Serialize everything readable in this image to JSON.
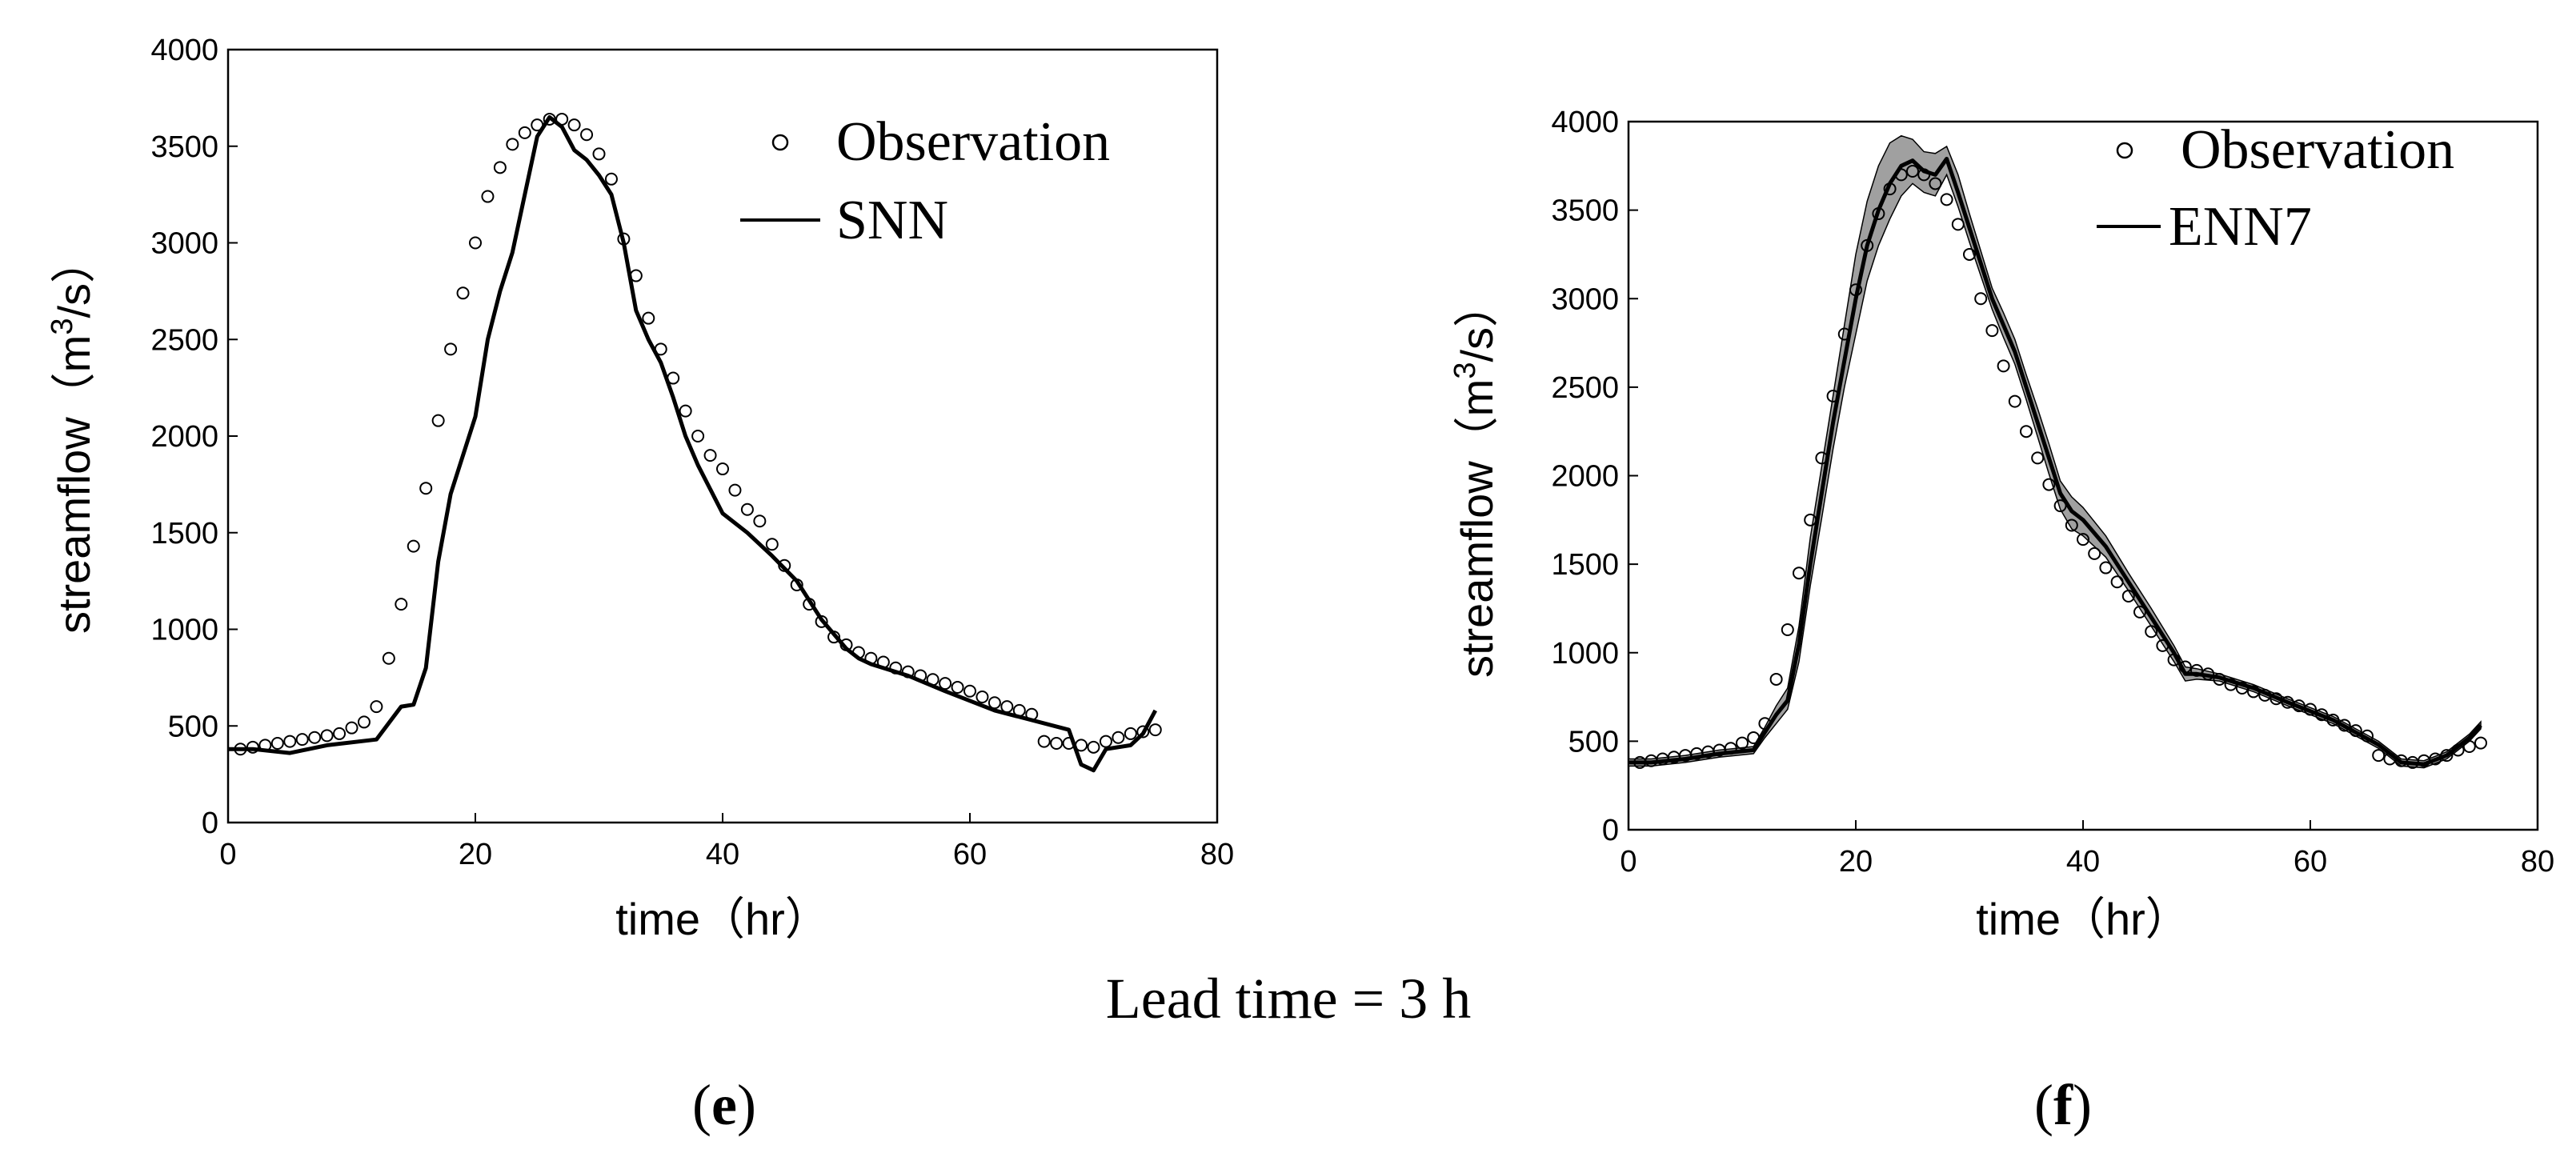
{
  "caption": "Lead time = 3 h",
  "panels": [
    {
      "paren_open": "(",
      "letter": "e",
      "paren_close": ")"
    },
    {
      "paren_open": "(",
      "letter": "f",
      "paren_close": ")"
    }
  ],
  "chart_data": [
    {
      "type": "line",
      "title": "",
      "xlabel": "time（hr）",
      "ylabel_main": "streamflow（m",
      "ylabel_sup": "3",
      "ylabel_end": "/s）",
      "xlim": [
        0,
        80
      ],
      "ylim": [
        0,
        4000
      ],
      "xticks": [
        0,
        20,
        40,
        60,
        80
      ],
      "yticks": [
        0,
        500,
        1000,
        1500,
        2000,
        2500,
        3000,
        3500,
        4000
      ],
      "legend_position": "top-right",
      "series": [
        {
          "name": "Observation",
          "style": "markers",
          "x": [
            1,
            2,
            3,
            4,
            5,
            6,
            7,
            8,
            9,
            10,
            11,
            12,
            13,
            14,
            15,
            16,
            17,
            18,
            19,
            20,
            21,
            22,
            23,
            24,
            25,
            26,
            27,
            28,
            29,
            30,
            31,
            32,
            33,
            34,
            35,
            36,
            37,
            38,
            39,
            40,
            41,
            42,
            43,
            44,
            45,
            46,
            47,
            48,
            49,
            50,
            51,
            52,
            53,
            54,
            55,
            56,
            57,
            58,
            59,
            60,
            61,
            62,
            63,
            64,
            65,
            66,
            67,
            68,
            69,
            70,
            71,
            72,
            73,
            74,
            75
          ],
          "y": [
            380,
            390,
            400,
            410,
            420,
            430,
            440,
            450,
            460,
            490,
            520,
            600,
            850,
            1130,
            1430,
            1730,
            2080,
            2450,
            2740,
            3000,
            3240,
            3390,
            3510,
            3570,
            3610,
            3640,
            3640,
            3610,
            3560,
            3460,
            3330,
            3020,
            2830,
            2610,
            2450,
            2300,
            2130,
            2000,
            1900,
            1830,
            1720,
            1620,
            1560,
            1440,
            1330,
            1230,
            1130,
            1040,
            960,
            920,
            880,
            850,
            830,
            800,
            780,
            760,
            740,
            720,
            700,
            680,
            650,
            620,
            600,
            580,
            560,
            420,
            410,
            410,
            400,
            390,
            420,
            440,
            460,
            470,
            480
          ],
          "color": "#000000"
        },
        {
          "name": "SNN",
          "style": "line",
          "x": [
            0,
            2,
            5,
            8,
            12,
            14,
            15,
            16,
            17,
            18,
            19,
            20,
            21,
            22,
            23,
            24,
            25,
            26,
            27,
            28,
            29,
            30,
            31,
            32,
            33,
            34,
            35,
            36,
            37,
            38,
            40,
            42,
            44,
            46,
            48,
            50,
            51,
            52,
            55,
            58,
            62,
            68,
            69,
            70,
            71,
            73,
            74,
            75
          ],
          "y": [
            380,
            380,
            360,
            400,
            430,
            600,
            610,
            800,
            1350,
            1700,
            1900,
            2100,
            2500,
            2750,
            2950,
            3250,
            3550,
            3650,
            3600,
            3480,
            3430,
            3350,
            3250,
            3000,
            2650,
            2500,
            2380,
            2200,
            2000,
            1850,
            1600,
            1500,
            1380,
            1250,
            1050,
            900,
            850,
            820,
            760,
            680,
            580,
            480,
            300,
            270,
            380,
            400,
            460,
            580
          ],
          "color": "#000000"
        }
      ]
    },
    {
      "type": "line",
      "title": "",
      "xlabel": "time（hr）",
      "ylabel_main": "streamflow（m",
      "ylabel_sup": "3",
      "ylabel_end": "/s）",
      "xlim": [
        0,
        80
      ],
      "ylim": [
        0,
        4000
      ],
      "xticks": [
        0,
        20,
        40,
        60,
        80
      ],
      "yticks": [
        0,
        500,
        1000,
        1500,
        2000,
        2500,
        3000,
        3500,
        4000
      ],
      "legend_position": "top-right",
      "series": [
        {
          "name": "Observation",
          "style": "markers",
          "x": [
            1,
            2,
            3,
            4,
            5,
            6,
            7,
            8,
            9,
            10,
            11,
            12,
            13,
            14,
            15,
            16,
            17,
            18,
            19,
            20,
            21,
            22,
            23,
            24,
            25,
            26,
            27,
            28,
            29,
            30,
            31,
            32,
            33,
            34,
            35,
            36,
            37,
            38,
            39,
            40,
            41,
            42,
            43,
            44,
            45,
            46,
            47,
            48,
            49,
            50,
            51,
            52,
            53,
            54,
            55,
            56,
            57,
            58,
            59,
            60,
            61,
            62,
            63,
            64,
            65,
            66,
            67,
            68,
            69,
            70,
            71,
            72,
            73,
            74,
            75
          ],
          "y": [
            380,
            390,
            400,
            410,
            420,
            430,
            440,
            450,
            460,
            490,
            520,
            600,
            850,
            1130,
            1450,
            1750,
            2100,
            2450,
            2800,
            3050,
            3300,
            3480,
            3620,
            3700,
            3720,
            3700,
            3650,
            3560,
            3420,
            3250,
            3000,
            2820,
            2620,
            2420,
            2250,
            2100,
            1950,
            1830,
            1720,
            1640,
            1560,
            1480,
            1400,
            1320,
            1230,
            1120,
            1040,
            960,
            920,
            900,
            880,
            850,
            820,
            800,
            780,
            760,
            740,
            720,
            700,
            680,
            650,
            620,
            590,
            560,
            530,
            420,
            400,
            390,
            380,
            390,
            400,
            420,
            450,
            470,
            490
          ],
          "color": "#000000"
        },
        {
          "name": "ENN7",
          "style": "line",
          "x": [
            0,
            2,
            5,
            8,
            11,
            12,
            13,
            14,
            15,
            16,
            17,
            18,
            19,
            20,
            21,
            22,
            23,
            24,
            25,
            26,
            27,
            28,
            29,
            30,
            31,
            32,
            33,
            34,
            35,
            36,
            37,
            38,
            39,
            40,
            42,
            44,
            46,
            48,
            49,
            50,
            52,
            55,
            58,
            62,
            66,
            68,
            70,
            72,
            74,
            75
          ],
          "y": [
            380,
            380,
            400,
            430,
            450,
            550,
            650,
            730,
            1050,
            1500,
            1900,
            2300,
            2650,
            3000,
            3300,
            3500,
            3650,
            3750,
            3780,
            3720,
            3700,
            3790,
            3600,
            3400,
            3200,
            3000,
            2850,
            2700,
            2500,
            2300,
            2100,
            1900,
            1800,
            1750,
            1600,
            1400,
            1200,
            1000,
            880,
            880,
            860,
            800,
            720,
            620,
            480,
            380,
            370,
            420,
            520,
            590
          ],
          "band_upper": [
            400,
            400,
            420,
            450,
            470,
            580,
            700,
            800,
            1150,
            1650,
            2050,
            2450,
            2850,
            3250,
            3550,
            3750,
            3880,
            3920,
            3900,
            3830,
            3820,
            3860,
            3700,
            3480,
            3270,
            3060,
            2920,
            2770,
            2570,
            2380,
            2180,
            1970,
            1880,
            1820,
            1660,
            1450,
            1250,
            1040,
            920,
            910,
            880,
            820,
            740,
            640,
            500,
            400,
            390,
            440,
            540,
            610
          ],
          "band_lower": [
            360,
            360,
            380,
            410,
            430,
            520,
            600,
            680,
            950,
            1380,
            1760,
            2150,
            2500,
            2800,
            3100,
            3300,
            3450,
            3580,
            3650,
            3600,
            3580,
            3700,
            3520,
            3320,
            3130,
            2940,
            2780,
            2630,
            2430,
            2220,
            2010,
            1810,
            1700,
            1660,
            1540,
            1350,
            1150,
            950,
            840,
            850,
            840,
            780,
            700,
            600,
            460,
            360,
            350,
            400,
            500,
            570
          ],
          "color": "#000000",
          "band_color": "#a0a0a0"
        }
      ]
    }
  ]
}
